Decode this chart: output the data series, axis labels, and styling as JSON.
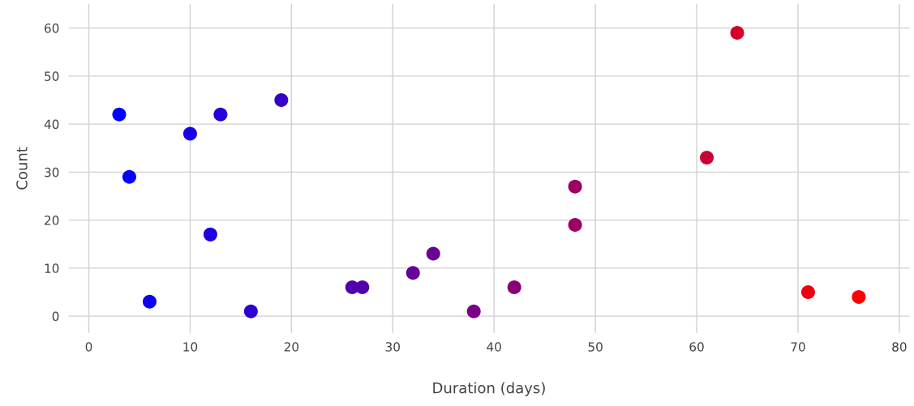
{
  "chart_data": {
    "type": "scatter",
    "xlabel": "Duration (days)",
    "ylabel": "Count",
    "x": [
      3,
      4,
      6,
      10,
      12,
      13,
      16,
      19,
      26,
      27,
      32,
      34,
      38,
      42,
      48,
      48,
      61,
      64,
      71,
      76
    ],
    "values": [
      42,
      29,
      3,
      38,
      17,
      42,
      1,
      45,
      6,
      6,
      9,
      13,
      1,
      6,
      27,
      19,
      33,
      59,
      5,
      4
    ],
    "colors": [
      "#0000ff",
      "#0400fb",
      "#0b00f4",
      "#1800e7",
      "#1f00e0",
      "#2300dc",
      "#2d00d2",
      "#3800c7",
      "#5000af",
      "#5400ab",
      "#65009a",
      "#6c0093",
      "#7a0085",
      "#880077",
      "#9d0062",
      "#9d0062",
      "#ca0035",
      "#d5002a",
      "#ee0011",
      "#ff0000"
    ],
    "xlim": [
      -2,
      81
    ],
    "ylim": [
      -3.5,
      65
    ],
    "xticks": [
      0,
      10,
      20,
      30,
      40,
      50,
      60,
      70,
      80
    ],
    "yticks": [
      0,
      10,
      20,
      30,
      40,
      50,
      60
    ],
    "grid": true,
    "marker": "circle"
  }
}
